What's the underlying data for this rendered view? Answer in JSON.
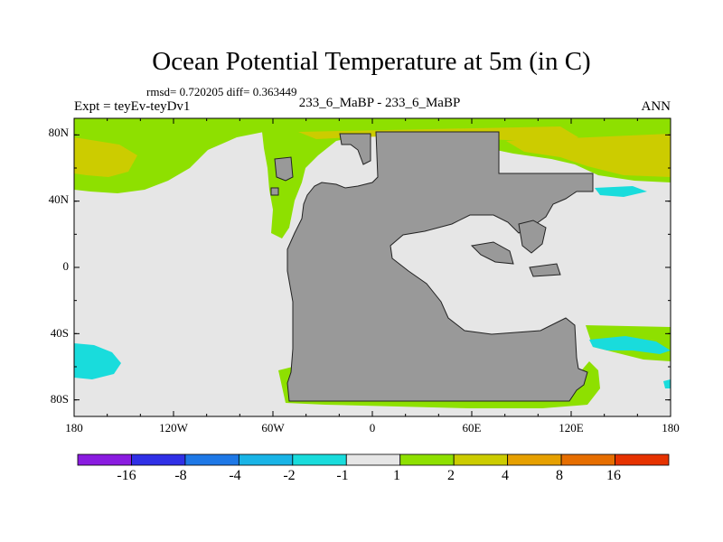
{
  "title": "Ocean Potential Temperature at 5m (in C)",
  "stats_line": "rmsd= 0.720205  diff= 0.363449",
  "left_string": "Expt = teyEv-teyDv1",
  "center_string": "233_6_MaBP - 233_6_MaBP",
  "right_string": "ANN",
  "map_data": {
    "projection": "cylindrical-equidistant",
    "lon_range": [
      -180,
      180
    ],
    "lat_range": [
      -90,
      90
    ],
    "y_ticks": [
      {
        "lat": 80,
        "label": "80N"
      },
      {
        "lat": 40,
        "label": "40N"
      },
      {
        "lat": 0,
        "label": "0"
      },
      {
        "lat": -40,
        "label": "40S"
      },
      {
        "lat": -80,
        "label": "80S"
      }
    ],
    "x_ticks": [
      {
        "lon": -180,
        "label": "180"
      },
      {
        "lon": -120,
        "label": "120W"
      },
      {
        "lon": -60,
        "label": "60W"
      },
      {
        "lon": 0,
        "label": "0"
      },
      {
        "lon": 60,
        "label": "60E"
      },
      {
        "lon": 120,
        "label": "120E"
      },
      {
        "lon": 180,
        "label": "180"
      }
    ],
    "colors": {
      "background": "#e6e6e6",
      "land": "#999999",
      "green": "#8ee000",
      "yellow": "#cccc00",
      "cyan": "#19dcdc"
    }
  },
  "colorbar": {
    "levels": [
      "-16",
      "-8",
      "-4",
      "-2",
      "-1",
      "1",
      "2",
      "4",
      "8",
      "16"
    ],
    "colors": [
      "#8a1ce0",
      "#3030e6",
      "#1e78e6",
      "#19b4e6",
      "#19dcdc",
      "#e6e6e6",
      "#8ee000",
      "#cccc00",
      "#e6a000",
      "#e66e00",
      "#e63200"
    ]
  }
}
